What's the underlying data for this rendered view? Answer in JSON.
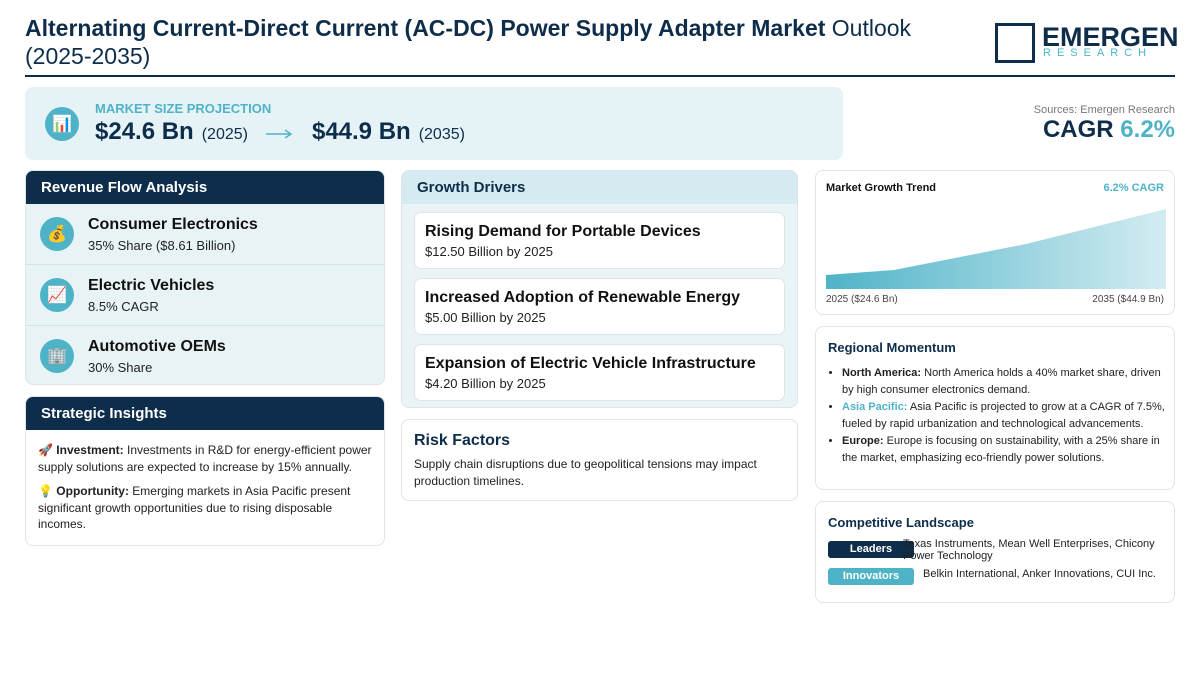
{
  "header": {
    "title_bold": "Alternating Current-Direct Current (AC-DC) Power Supply Adapter Market",
    "title_rest": "Outlook (2025-2035)",
    "logo": {
      "name": "EMERGEN",
      "sub": "RESEARCH"
    }
  },
  "projection": {
    "icon": "📊",
    "label": "MARKET SIZE PROJECTION",
    "start_value": "$24.6 Bn",
    "start_year": "(2025)",
    "end_value": "$44.9 Bn",
    "end_year": "(2035)"
  },
  "summary": {
    "source": "Sources: Emergen Research",
    "cagr_label": "CAGR",
    "cagr_value": "6.2%"
  },
  "revenue_flow": {
    "title": "Revenue Flow Analysis",
    "items": [
      {
        "icon": "💰",
        "name": "Consumer Electronics",
        "detail": "35% Share ($8.61 Billion)"
      },
      {
        "icon": "📈",
        "name": "Electric Vehicles",
        "detail": "8.5% CAGR"
      },
      {
        "icon": "🏢",
        "name": "Automotive OEMs",
        "detail": "30% Share"
      }
    ]
  },
  "strategic_insights": {
    "title": "Strategic Insights",
    "items": [
      {
        "icon": "🚀",
        "label": "Investment:",
        "text": "Investments in R&D for energy-efficient power supply solutions are expected to increase by 15% annually."
      },
      {
        "icon": "💡",
        "label": "Opportunity:",
        "text": "Emerging markets in Asia Pacific present significant growth opportunities due to rising disposable incomes."
      }
    ]
  },
  "growth_drivers": {
    "title": "Growth Drivers",
    "items": [
      {
        "name": "Rising Demand for Portable Devices",
        "value": "$12.50 Billion by 2025"
      },
      {
        "name": "Increased Adoption of Renewable Energy",
        "value": "$5.00 Billion by 2025"
      },
      {
        "name": "Expansion of Electric Vehicle Infrastructure",
        "value": "$4.20 Billion by 2025"
      }
    ]
  },
  "risk_factors": {
    "title": "Risk Factors",
    "text": "Supply chain disruptions due to geopolitical tensions may impact production timelines."
  },
  "market_growth_trend": {
    "title": "Market Growth Trend",
    "cagr": "6.2% CAGR",
    "start_label": "2025 ($24.6 Bn)",
    "end_label": "2035 ($44.9 Bn)"
  },
  "regional_momentum": {
    "title": "Regional Momentum",
    "items": [
      {
        "label": "North America:",
        "text": "North America holds a 40% market share, driven by high consumer electronics demand."
      },
      {
        "label": "Asia Pacific:",
        "text": "Asia Pacific is projected to grow at a CAGR of 7.5%, fueled by rapid urbanization and technological advancements."
      },
      {
        "label": "Europe:",
        "text": "Europe is focusing on sustainability, with a 25% share in the market, emphasizing eco-friendly power solutions."
      }
    ]
  },
  "competitive_landscape": {
    "title": "Competitive Landscape",
    "rows": [
      {
        "badge": "Leaders",
        "text": "Texas Instruments, Mean Well Enterprises, Chicony Power Technology"
      },
      {
        "badge": "Innovators",
        "text": "Belkin International, Anker Innovations, CUI Inc."
      }
    ]
  }
}
